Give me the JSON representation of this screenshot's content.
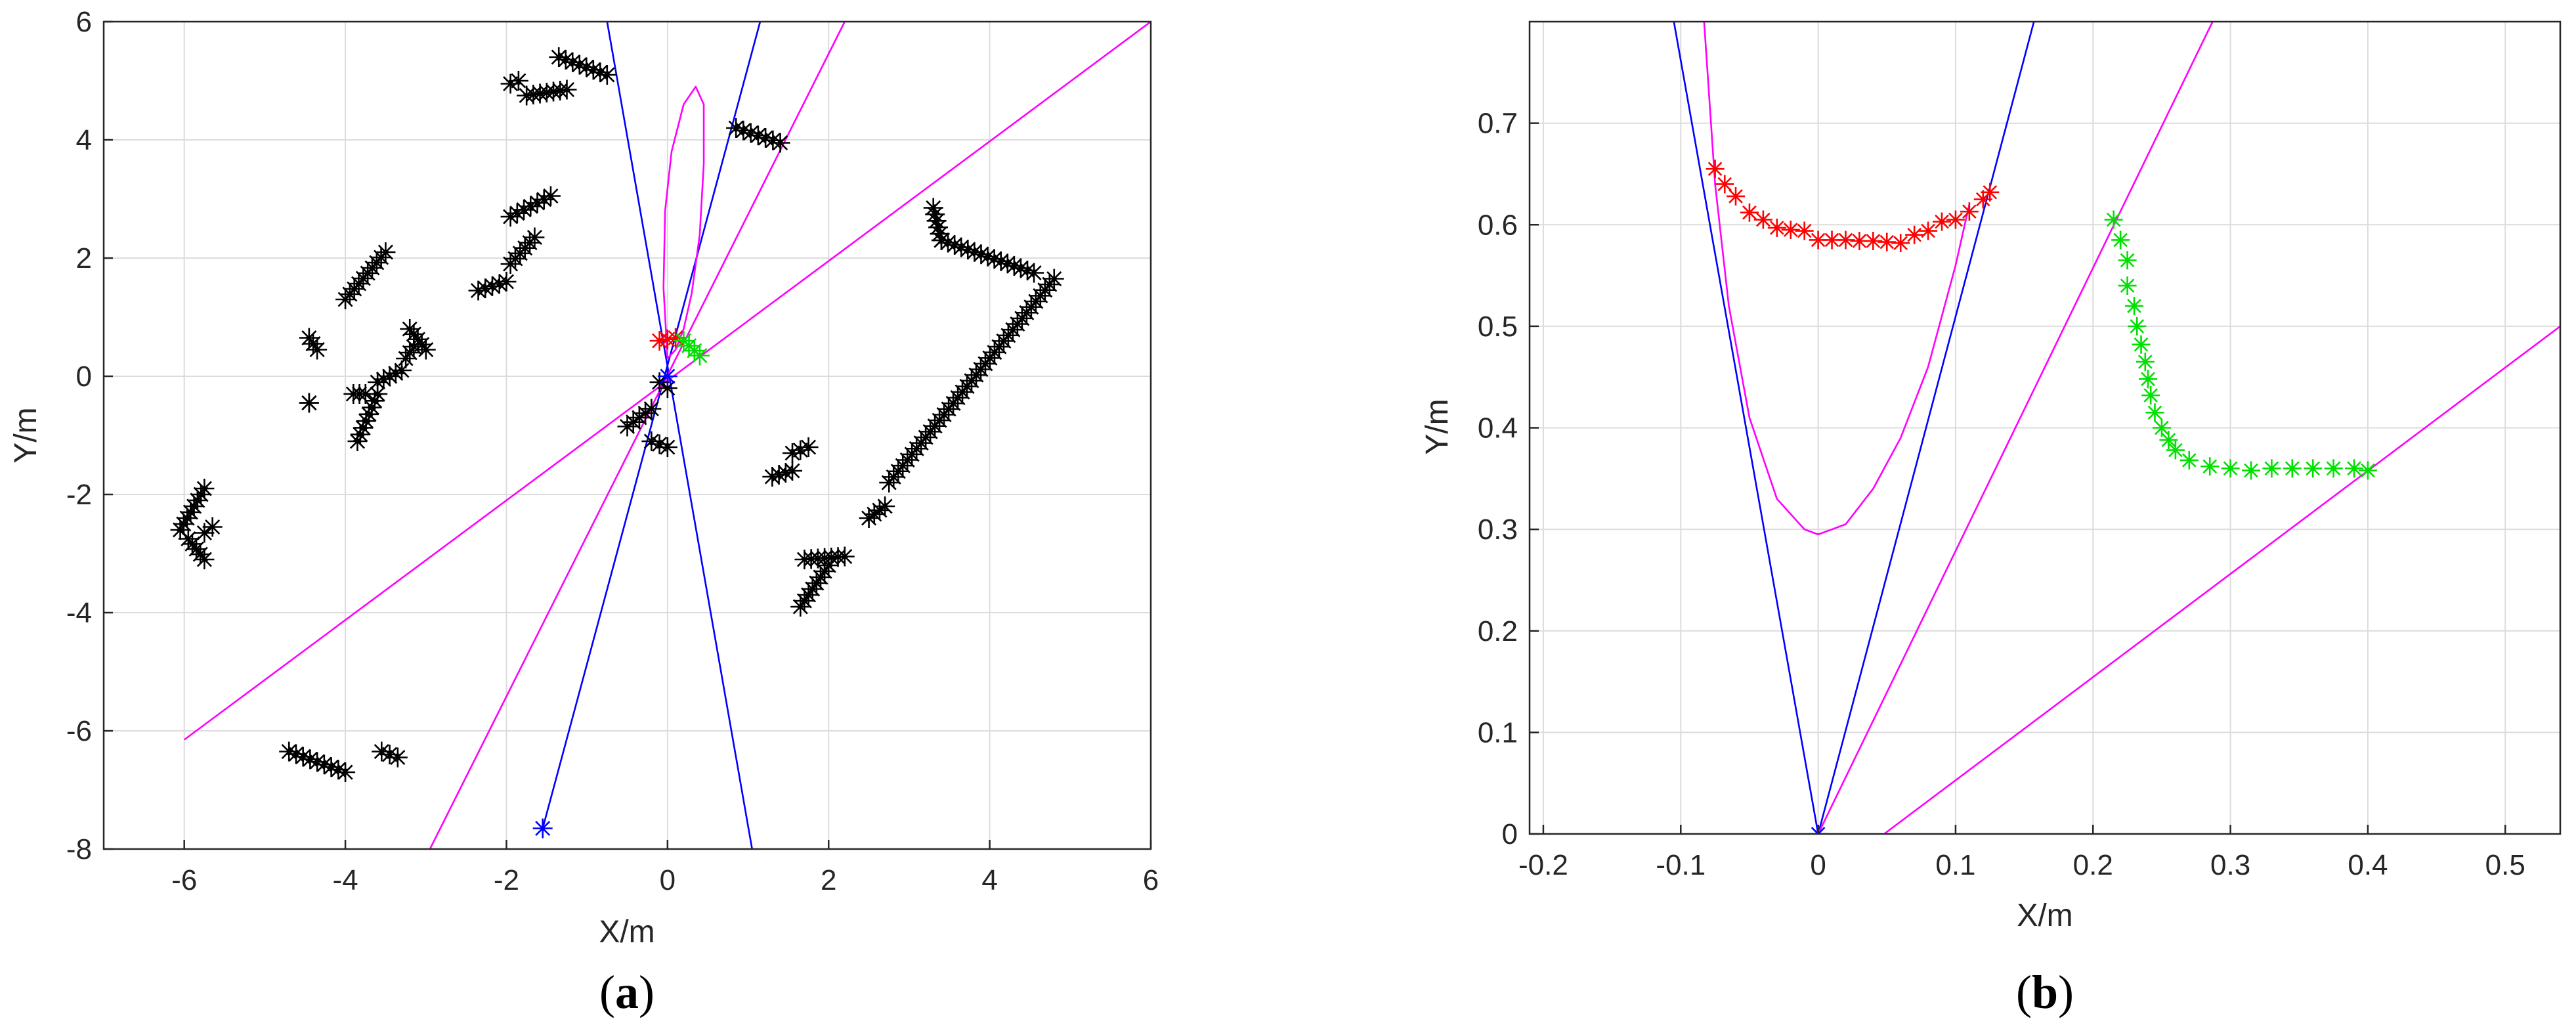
{
  "figure": {
    "captions": [
      {
        "open": "(",
        "letter": "a",
        "close": ")"
      },
      {
        "open": "(",
        "letter": "b",
        "close": ")"
      }
    ]
  },
  "chart_data": [
    {
      "type": "scatter",
      "title": "",
      "xlabel": "X/m",
      "ylabel": "Y/m",
      "xlim": [
        -7,
        6
      ],
      "ylim": [
        -8,
        6
      ],
      "xticks": [
        -6,
        -4,
        -2,
        0,
        2,
        4,
        6
      ],
      "yticks": [
        -8,
        -6,
        -4,
        -2,
        0,
        2,
        4,
        6
      ],
      "grid": true,
      "series": [
        {
          "role": "obstacle",
          "color": "#000000",
          "marker": "asterisk",
          "segments": [
            [
              [
                -6.05,
                -2.6
              ],
              [
                -5.75,
                -1.9
              ]
            ],
            [
              [
                -5.95,
                -2.75
              ],
              [
                -5.75,
                -3.1
              ]
            ],
            [
              [
                -5.75,
                -2.65
              ],
              [
                -5.65,
                -2.55
              ]
            ],
            [
              [
                -4.7,
                -6.35
              ],
              [
                -4.0,
                -6.7
              ]
            ],
            [
              [
                -3.55,
                -6.35
              ],
              [
                -3.35,
                -6.45
              ]
            ],
            [
              [
                -4.45,
                0.65
              ],
              [
                -4.35,
                0.45
              ]
            ],
            [
              [
                -4.45,
                -0.45
              ],
              [
                -4.45,
                -0.45
              ]
            ],
            [
              [
                -4.0,
                1.3
              ],
              [
                -3.5,
                2.1
              ]
            ],
            [
              [
                -3.9,
                -0.3
              ],
              [
                -3.75,
                -0.3
              ]
            ],
            [
              [
                -3.85,
                -1.1
              ],
              [
                -3.6,
                -0.3
              ]
            ],
            [
              [
                -3.6,
                -0.1
              ],
              [
                -3.3,
                0.1
              ]
            ],
            [
              [
                -3.2,
                0.8
              ],
              [
                -3.0,
                0.45
              ]
            ],
            [
              [
                -3.25,
                0.3
              ],
              [
                -3.15,
                0.5
              ]
            ],
            [
              [
                -2.35,
                1.45
              ],
              [
                -2.0,
                1.6
              ]
            ],
            [
              [
                -1.95,
                1.9
              ],
              [
                -1.65,
                2.35
              ]
            ],
            [
              [
                -1.95,
                2.7
              ],
              [
                -1.45,
                3.05
              ]
            ],
            [
              [
                -1.95,
                4.95
              ],
              [
                -1.85,
                5.0
              ]
            ],
            [
              [
                -1.75,
                4.75
              ],
              [
                -1.25,
                4.85
              ]
            ],
            [
              [
                -1.35,
                5.4
              ],
              [
                -0.75,
                5.1
              ]
            ],
            [
              [
                -0.5,
                -0.85
              ],
              [
                -0.2,
                -0.55
              ]
            ],
            [
              [
                -0.1,
                -0.1
              ],
              [
                0.0,
                -0.2
              ]
            ],
            [
              [
                -0.2,
                -1.1
              ],
              [
                0.0,
                -1.2
              ]
            ],
            [
              [
                0.85,
                4.2
              ],
              [
                1.4,
                3.95
              ]
            ],
            [
              [
                1.3,
                -1.7
              ],
              [
                1.55,
                -1.6
              ]
            ],
            [
              [
                1.55,
                -1.3
              ],
              [
                1.75,
                -1.2
              ]
            ],
            [
              [
                1.65,
                -3.9
              ],
              [
                2.0,
                -3.2
              ]
            ],
            [
              [
                1.7,
                -3.1
              ],
              [
                2.2,
                -3.05
              ]
            ],
            [
              [
                2.5,
                -2.4
              ],
              [
                2.7,
                -2.2
              ]
            ],
            [
              [
                2.75,
                -1.8
              ],
              [
                4.8,
                1.65
              ]
            ],
            [
              [
                3.3,
                2.85
              ],
              [
                3.4,
                2.3
              ]
            ],
            [
              [
                3.4,
                2.3
              ],
              [
                4.55,
                1.75
              ]
            ]
          ]
        },
        {
          "role": "target-red",
          "color": "#ff0000",
          "marker": "asterisk",
          "segments": [
            [
              [
                -0.1,
                0.6
              ],
              [
                0.1,
                0.65
              ]
            ]
          ]
        },
        {
          "role": "target-green",
          "color": "#00e000",
          "marker": "asterisk",
          "segments": [
            [
              [
                0.2,
                0.6
              ],
              [
                0.4,
                0.35
              ]
            ]
          ]
        },
        {
          "role": "origin",
          "color": "#0000ff",
          "marker": "asterisk",
          "points": [
            [
              0,
              0
            ],
            [
              -1.55,
              -7.65
            ]
          ]
        }
      ],
      "lines": [
        {
          "color": "#0000ff",
          "x": [
            -0.75,
            1.05
          ],
          "y": [
            6,
            -8
          ]
        },
        {
          "color": "#0000ff",
          "x": [
            1.15,
            -1.55
          ],
          "y": [
            6,
            -7.65
          ]
        },
        {
          "color": "#ff00ff",
          "x": [
            -6.0,
            6.0
          ],
          "y": [
            -6.15,
            6.0
          ]
        },
        {
          "color": "#ff00ff",
          "x": [
            2.2,
            -2.95
          ],
          "y": [
            6.0,
            -8.0
          ]
        }
      ],
      "ellipse": {
        "color": "#ff00ff",
        "x": [
          0.0,
          -0.05,
          -0.03,
          0.05,
          0.2,
          0.35,
          0.45,
          0.45,
          0.4,
          0.3,
          0.2,
          0.1,
          0.0
        ],
        "y": [
          0.3,
          1.5,
          2.8,
          3.8,
          4.6,
          4.9,
          4.6,
          3.6,
          2.4,
          1.4,
          0.8,
          0.45,
          0.3
        ]
      }
    },
    {
      "type": "scatter",
      "title": "",
      "xlabel": "X/m",
      "ylabel": "Y/m",
      "xlim": [
        -0.21,
        0.54
      ],
      "ylim": [
        0,
        0.8
      ],
      "xticks": [
        -0.2,
        -0.1,
        0,
        0.1,
        0.2,
        0.3,
        0.4,
        0.5
      ],
      "yticks": [
        0,
        0.1,
        0.2,
        0.3,
        0.4,
        0.5,
        0.6,
        0.7
      ],
      "grid": true,
      "series": [
        {
          "role": "target-red",
          "color": "#ff0000",
          "marker": "asterisk",
          "x": [
            -0.075,
            -0.068,
            -0.06,
            -0.05,
            -0.04,
            -0.03,
            -0.02,
            -0.01,
            0.0,
            0.01,
            0.02,
            0.03,
            0.04,
            0.05,
            0.06,
            0.07,
            0.08,
            0.09,
            0.1,
            0.11,
            0.12,
            0.125
          ],
          "y": [
            0.655,
            0.64,
            0.628,
            0.612,
            0.605,
            0.597,
            0.595,
            0.594,
            0.585,
            0.585,
            0.585,
            0.584,
            0.584,
            0.583,
            0.582,
            0.59,
            0.594,
            0.603,
            0.605,
            0.613,
            0.625,
            0.632
          ]
        },
        {
          "role": "target-green",
          "color": "#00e000",
          "marker": "asterisk",
          "x": [
            0.215,
            0.22,
            0.225,
            0.225,
            0.23,
            0.232,
            0.235,
            0.238,
            0.24,
            0.242,
            0.245,
            0.25,
            0.255,
            0.26,
            0.27,
            0.285,
            0.3,
            0.315,
            0.33,
            0.345,
            0.36,
            0.375,
            0.39,
            0.4
          ],
          "y": [
            0.605,
            0.585,
            0.565,
            0.54,
            0.52,
            0.5,
            0.482,
            0.465,
            0.448,
            0.432,
            0.415,
            0.4,
            0.388,
            0.378,
            0.368,
            0.362,
            0.36,
            0.358,
            0.36,
            0.36,
            0.36,
            0.36,
            0.36,
            0.358
          ]
        },
        {
          "role": "origin",
          "color": "#0000ff",
          "marker": "asterisk",
          "x": [
            0
          ],
          "y": [
            0
          ]
        }
      ],
      "lines": [
        {
          "color": "#0000ff",
          "x": [
            0,
            -0.105
          ],
          "y": [
            0,
            0.8
          ]
        },
        {
          "color": "#0000ff",
          "x": [
            0,
            0.157
          ],
          "y": [
            0,
            0.8
          ]
        },
        {
          "color": "#ff00ff",
          "x": [
            0,
            0.287
          ],
          "y": [
            0,
            0.8
          ]
        },
        {
          "color": "#ff00ff",
          "x": [
            0.048,
            0.54
          ],
          "y": [
            0,
            0.5
          ]
        }
      ],
      "curve": {
        "color": "#ff00ff",
        "x": [
          -0.083,
          -0.075,
          -0.065,
          -0.05,
          -0.03,
          -0.01,
          0.0,
          0.02,
          0.04,
          0.06,
          0.08,
          0.1,
          0.11
        ],
        "y": [
          0.8,
          0.64,
          0.52,
          0.41,
          0.33,
          0.3,
          0.295,
          0.305,
          0.34,
          0.39,
          0.46,
          0.56,
          0.62
        ]
      }
    }
  ]
}
